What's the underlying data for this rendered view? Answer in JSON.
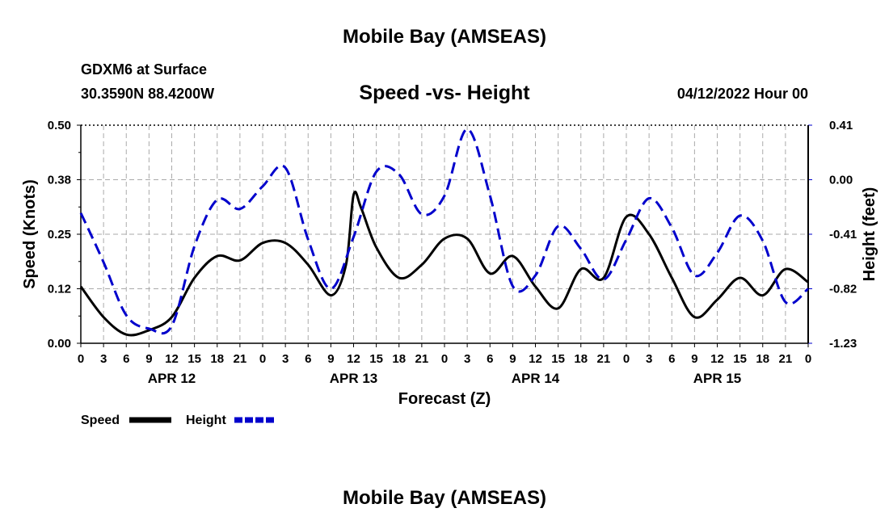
{
  "page": {
    "title_top": "Mobile Bay (AMSEAS)",
    "title_bottom": "Mobile Bay (AMSEAS)",
    "station": "GDXM6 at Surface",
    "coordinates": "30.3590N  88.4200W",
    "subtitle": "Speed -vs- Height",
    "datetime": "04/12/2022 Hour 00"
  },
  "colors": {
    "speed": "#000000",
    "height": "#0000cc",
    "grid": "#aaaaaa"
  },
  "chart_data": {
    "type": "line",
    "xlabel": "Forecast (Z)",
    "ylabel_left": "Speed (Knots)",
    "ylabel_right": "Height (feet)",
    "x_range_hours": [
      0,
      96
    ],
    "x_tick_step_hours": 3,
    "x_tick_labels": [
      "0",
      "3",
      "6",
      "9",
      "12",
      "15",
      "18",
      "21",
      "0",
      "3",
      "6",
      "9",
      "12",
      "15",
      "18",
      "21",
      "0",
      "3",
      "6",
      "9",
      "12",
      "15",
      "18",
      "21",
      "0",
      "3",
      "6",
      "9",
      "12",
      "15",
      "18",
      "21",
      "0"
    ],
    "date_labels": [
      {
        "label": "APR 12",
        "hour": 12
      },
      {
        "label": "APR 13",
        "hour": 36
      },
      {
        "label": "APR 14",
        "hour": 60
      },
      {
        "label": "APR 15",
        "hour": 84
      }
    ],
    "y_left_range": [
      0,
      0.5
    ],
    "y_left_ticks": [
      "0.00",
      "0.12",
      "0.25",
      "0.38",
      "0.50"
    ],
    "y_right_range": [
      -1.23,
      0.41
    ],
    "y_right_ticks": [
      "-1.23",
      "-0.82",
      "-0.41",
      "0.00",
      "0.41"
    ],
    "grid": true,
    "legend": [
      {
        "name": "Speed",
        "style": "solid"
      },
      {
        "name": "Height",
        "style": "dashed"
      }
    ],
    "series": [
      {
        "name": "Speed",
        "axis": "left",
        "unit": "knots",
        "x": [
          0,
          3,
          6,
          9,
          12,
          15,
          18,
          21,
          24,
          27,
          30,
          33,
          35,
          36,
          37,
          39,
          42,
          45,
          48,
          51,
          54,
          57,
          60,
          63,
          66,
          69,
          72,
          75,
          78,
          81,
          84,
          87,
          90,
          93,
          96
        ],
        "values": [
          0.13,
          0.06,
          0.02,
          0.03,
          0.06,
          0.15,
          0.2,
          0.19,
          0.23,
          0.23,
          0.18,
          0.11,
          0.18,
          0.34,
          0.31,
          0.22,
          0.15,
          0.18,
          0.24,
          0.24,
          0.16,
          0.2,
          0.13,
          0.08,
          0.17,
          0.15,
          0.29,
          0.25,
          0.15,
          0.06,
          0.1,
          0.15,
          0.11,
          0.17,
          0.14
        ]
      },
      {
        "name": "Height",
        "axis": "right",
        "unit": "feet",
        "x": [
          0,
          3,
          6,
          9,
          12,
          15,
          18,
          21,
          24,
          27,
          30,
          33,
          36,
          39,
          42,
          45,
          48,
          51,
          54,
          57,
          60,
          63,
          66,
          69,
          72,
          75,
          78,
          81,
          84,
          87,
          90,
          93,
          96
        ],
        "values": [
          -0.25,
          -0.62,
          -1.02,
          -1.12,
          -1.1,
          -0.5,
          -0.15,
          -0.22,
          -0.05,
          0.09,
          -0.45,
          -0.82,
          -0.43,
          0.06,
          0.04,
          -0.26,
          -0.12,
          0.38,
          -0.12,
          -0.8,
          -0.72,
          -0.35,
          -0.52,
          -0.75,
          -0.45,
          -0.14,
          -0.36,
          -0.72,
          -0.55,
          -0.27,
          -0.46,
          -0.92,
          -0.82
        ]
      }
    ]
  }
}
